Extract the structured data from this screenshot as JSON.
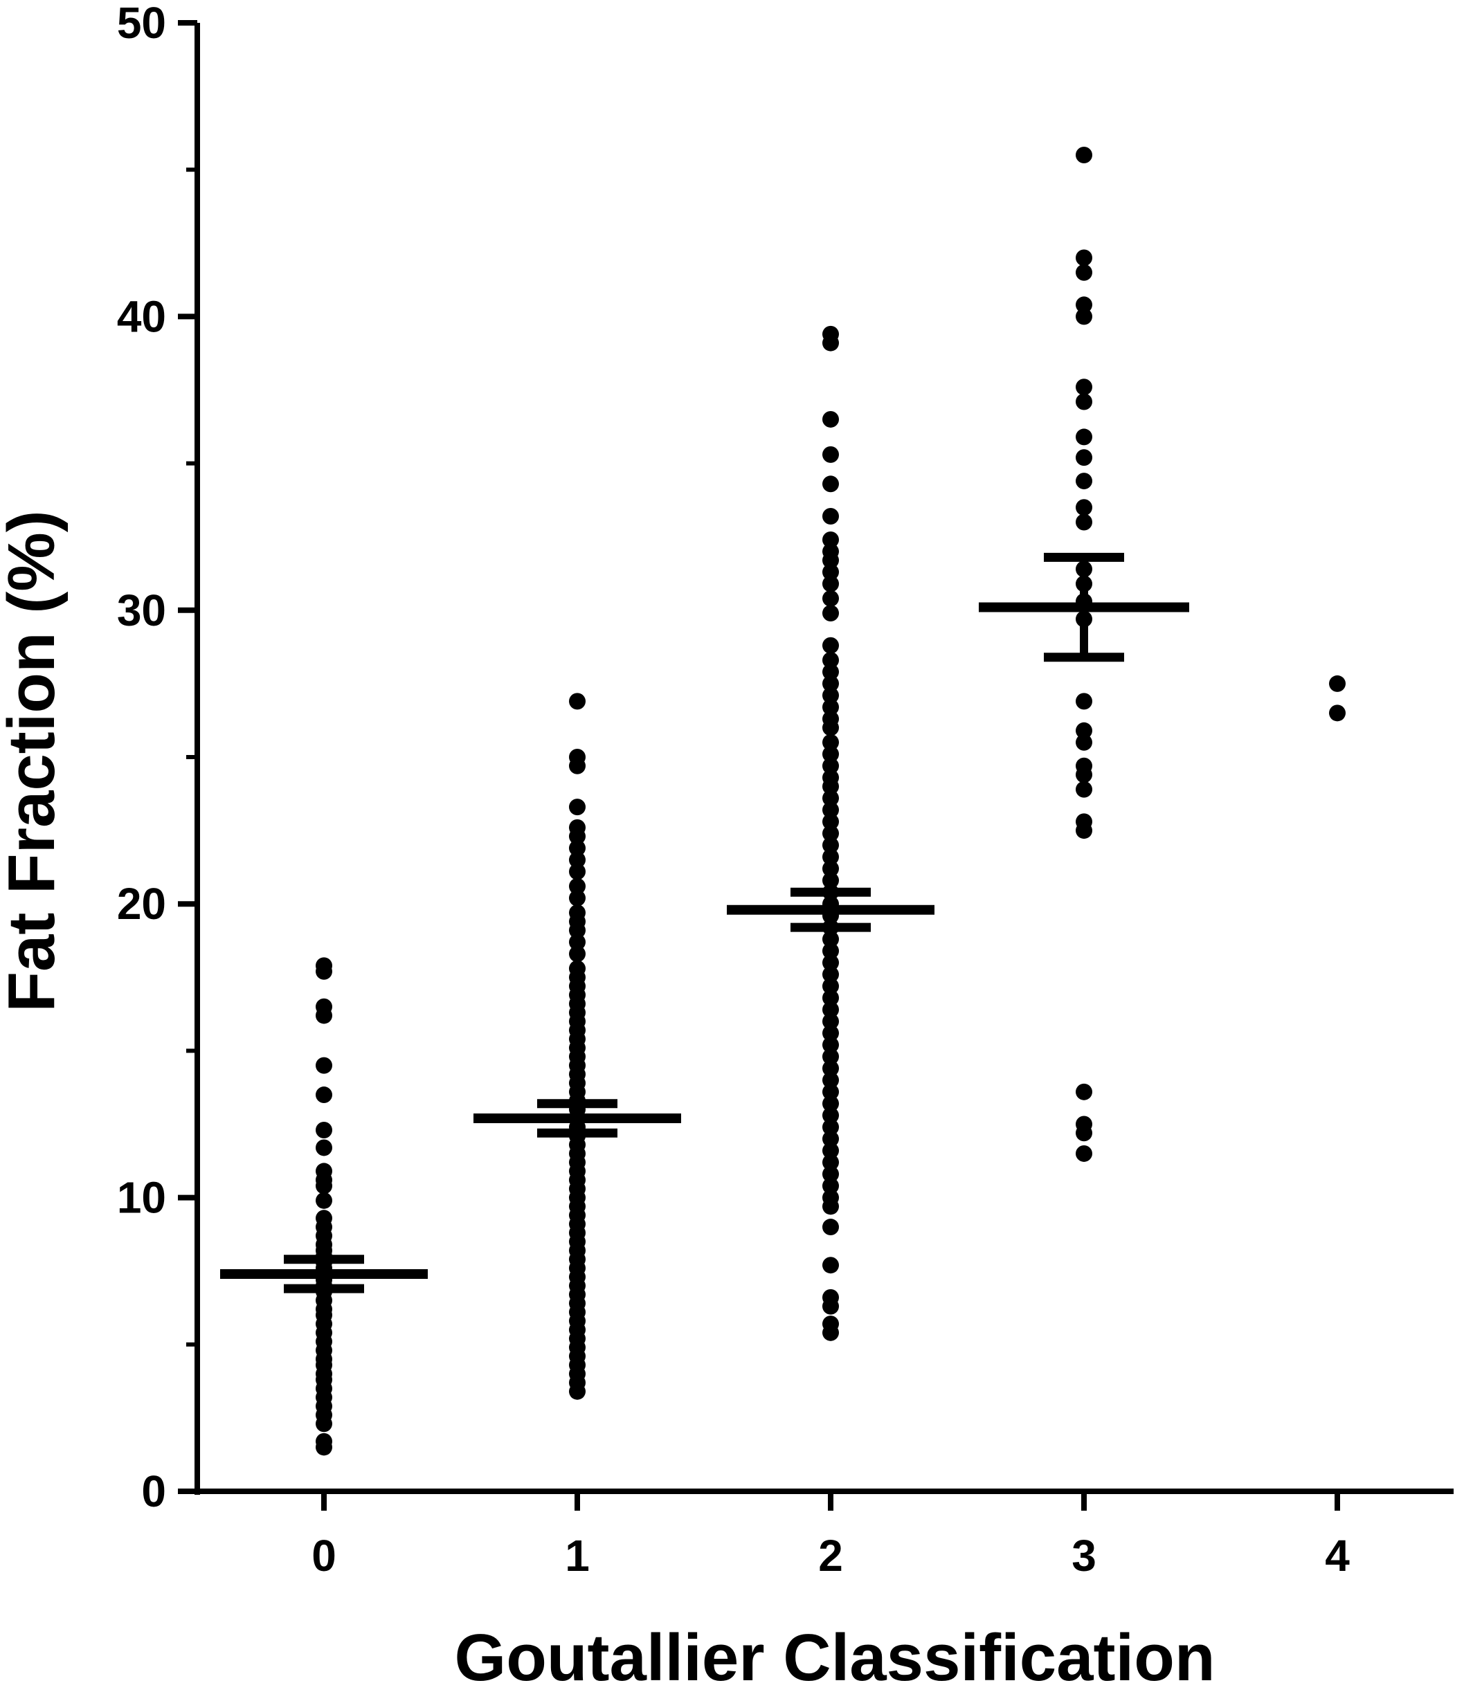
{
  "chart_data": {
    "type": "scatter",
    "xlabel": "Goutallier Classification",
    "ylabel": "Fat Fraction (%)",
    "categories": [
      "0",
      "1",
      "2",
      "3",
      "4"
    ],
    "ylim": [
      0,
      50
    ],
    "yticks": [
      0,
      10,
      20,
      30,
      40,
      50
    ],
    "yticks_minor": [
      5,
      15,
      25,
      35,
      45
    ],
    "grid": false,
    "legend": "none",
    "point_color": "#000000",
    "groups": [
      {
        "category": "0",
        "mean": 7.4,
        "sem_lower": 6.9,
        "sem_upper": 7.9,
        "values": [
          17.9,
          17.7,
          16.5,
          16.2,
          14.5,
          13.5,
          12.3,
          11.7,
          10.9,
          10.6,
          10.4,
          9.9,
          9.3,
          9.0,
          8.7,
          8.4,
          8.2,
          8.0,
          7.8,
          7.6,
          7.4,
          7.2,
          7.0,
          6.8,
          6.5,
          6.2,
          6.0,
          5.7,
          5.4,
          5.1,
          4.8,
          4.5,
          4.3,
          4.0,
          3.8,
          3.5,
          3.2,
          2.9,
          2.6,
          2.3,
          1.7,
          1.5
        ]
      },
      {
        "category": "1",
        "mean": 12.7,
        "sem_lower": 12.2,
        "sem_upper": 13.2,
        "values": [
          26.9,
          25.0,
          24.7,
          23.3,
          22.6,
          22.3,
          21.9,
          21.5,
          21.1,
          20.6,
          20.2,
          19.7,
          19.4,
          19.1,
          18.7,
          18.3,
          17.8,
          17.5,
          17.2,
          16.9,
          16.6,
          16.3,
          16.0,
          15.7,
          15.4,
          15.1,
          14.8,
          14.5,
          14.2,
          13.9,
          13.6,
          13.3,
          13.0,
          12.7,
          12.4,
          12.1,
          11.8,
          11.5,
          11.2,
          10.9,
          10.6,
          10.3,
          10.0,
          9.7,
          9.4,
          9.1,
          8.8,
          8.5,
          8.2,
          7.9,
          7.6,
          7.3,
          7.0,
          6.7,
          6.4,
          6.1,
          5.8,
          5.5,
          5.2,
          4.9,
          4.6,
          4.3,
          4.0,
          3.7,
          3.4
        ]
      },
      {
        "category": "2",
        "mean": 19.8,
        "sem_lower": 19.2,
        "sem_upper": 20.4,
        "values": [
          39.4,
          39.1,
          36.5,
          35.3,
          34.3,
          33.2,
          32.4,
          32.0,
          31.7,
          31.3,
          30.9,
          30.4,
          29.9,
          28.8,
          28.3,
          27.9,
          27.5,
          27.1,
          26.7,
          26.3,
          26.0,
          25.5,
          25.1,
          24.7,
          24.3,
          24.0,
          23.6,
          23.2,
          22.8,
          22.4,
          22.0,
          21.6,
          21.2,
          20.8,
          20.4,
          20.0,
          19.6,
          19.2,
          18.8,
          18.4,
          18.0,
          17.6,
          17.2,
          16.8,
          16.4,
          16.0,
          15.6,
          15.2,
          14.8,
          14.4,
          14.0,
          13.6,
          13.2,
          12.8,
          12.4,
          12.0,
          11.6,
          11.2,
          10.8,
          10.4,
          10.0,
          9.7,
          9.0,
          7.7,
          6.6,
          6.3,
          5.7,
          5.4
        ]
      },
      {
        "category": "3",
        "mean": 30.1,
        "sem_lower": 28.4,
        "sem_upper": 31.8,
        "values": [
          45.5,
          42.0,
          41.5,
          40.4,
          40.0,
          37.6,
          37.1,
          35.9,
          35.2,
          34.4,
          33.5,
          33.0,
          31.4,
          30.9,
          30.3,
          29.7,
          26.9,
          25.9,
          25.5,
          24.7,
          24.4,
          23.9,
          22.8,
          22.5,
          13.6,
          12.5,
          12.2,
          11.5
        ]
      },
      {
        "category": "4",
        "values": [
          27.5,
          26.5
        ]
      }
    ]
  }
}
